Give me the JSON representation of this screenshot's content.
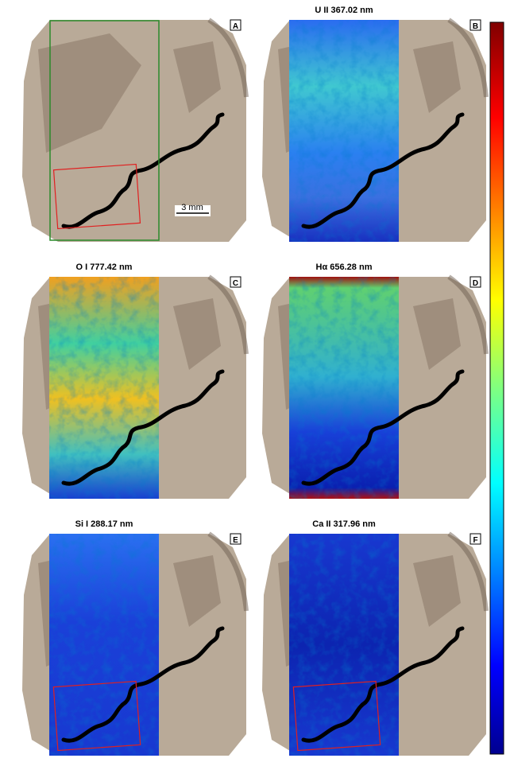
{
  "panels": [
    {
      "letter": "A"
    },
    {
      "letter": "B",
      "title": "U II 367.02 nm"
    },
    {
      "letter": "C",
      "title": "O I 777.42 nm"
    },
    {
      "letter": "D",
      "title": "Hα 656.28 nm"
    },
    {
      "letter": "E",
      "title": "Si I 288.17 nm"
    },
    {
      "letter": "F",
      "title": "Ca II 317.96 nm"
    }
  ],
  "scale_bar": "3 mm"
}
